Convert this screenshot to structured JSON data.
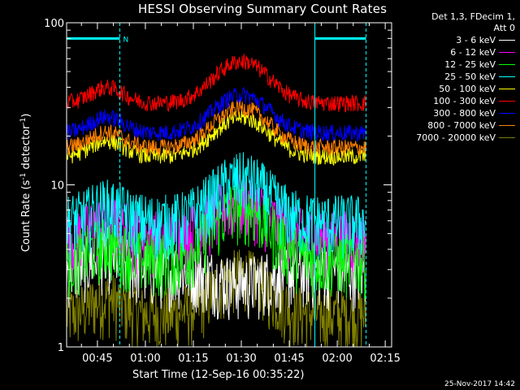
{
  "chart_data": {
    "type": "line",
    "title": "HESSI Observing Summary Count Rates",
    "xlabel": "Start Time (12-Sep-16 00:35:22)",
    "ylabel_main": "Count Rate (s",
    "ylabel_sup": "-1",
    "ylabel_mid": " detector",
    "ylabel_sup2": "-1",
    "ylabel_end": ")",
    "y_scale": "log",
    "ylim": [
      1,
      100
    ],
    "y_ticks": [
      "1",
      "10",
      "100"
    ],
    "x_ticks": [
      "00:45",
      "01:00",
      "01:15",
      "01:30",
      "01:45",
      "02:00",
      "02:15"
    ],
    "x_tick_minutes": [
      45,
      60,
      75,
      90,
      105,
      120,
      135
    ],
    "xlim_minutes": [
      35.37,
      137
    ],
    "data_end_minute": 129,
    "legend_header": [
      "Det 1,3, FDecim 1,",
      "Att 0"
    ],
    "legend_placement": "right",
    "series": [
      {
        "name": "3 - 6 keV",
        "color": "#ffffff",
        "level": 3.0,
        "peak": 2.5
      },
      {
        "name": "6 - 12 keV",
        "color": "#ff00ff",
        "level": 4.8,
        "peak": 8
      },
      {
        "name": "12 - 25 keV",
        "color": "#00ff00",
        "level": 3.5,
        "peak": 7.5
      },
      {
        "name": "25 - 50 keV",
        "color": "#00ffff",
        "level": 6.0,
        "peak": 11
      },
      {
        "name": "50 - 100 keV",
        "color": "#ffff00",
        "level": 15,
        "peak": 26
      },
      {
        "name": "100 - 300 keV",
        "color": "#ff0000",
        "level": 32,
        "peak": 58
      },
      {
        "name": "300 - 800 keV",
        "color": "#0000ff",
        "level": 21,
        "peak": 36
      },
      {
        "name": "800 - 7000 keV",
        "color": "#ff8000",
        "level": 17,
        "peak": 30
      },
      {
        "name": "7000 - 20000 keV",
        "color": "#808000",
        "level": 1.6,
        "peak": 2.8
      }
    ],
    "bars": [
      {
        "label": "N",
        "start_minute": 35.37,
        "end_minute": 52,
        "value": 80,
        "color": "#00ffff"
      },
      {
        "label": "",
        "start_minute": 113,
        "end_minute": 129,
        "value": 80,
        "color": "#00ffff"
      }
    ],
    "vlines_minutes": [
      52,
      113,
      129
    ]
  },
  "timestamp": "25-Nov-2017 14:42"
}
